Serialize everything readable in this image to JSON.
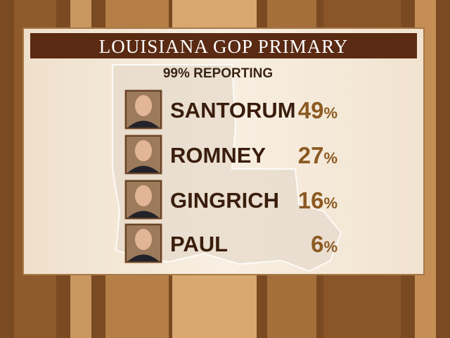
{
  "header": {
    "title": "LOUISIANA GOP PRIMARY",
    "subtitle": "99% REPORTING"
  },
  "results": [
    {
      "name": "SANTORUM",
      "percent": "49%"
    },
    {
      "name": "ROMNEY",
      "percent": "27%"
    },
    {
      "name": "GINGRICH",
      "percent": "16%"
    },
    {
      "name": "PAUL",
      "percent": "6%"
    }
  ]
}
